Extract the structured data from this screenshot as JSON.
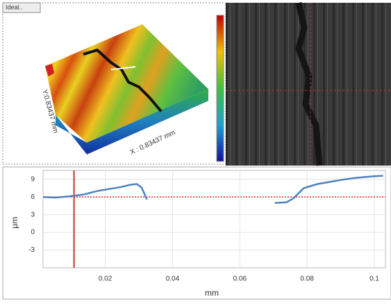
{
  "view3d": {
    "tab": "Ideal..",
    "x_label": "X : 0.83437 mm",
    "y_label": "Y:0.83437 mm"
  },
  "chart_data": {
    "type": "line",
    "x": [
      0.0015,
      0.0052,
      0.0093,
      0.0134,
      0.0175,
      0.0216,
      0.0247,
      0.0277,
      0.0294,
      0.0308,
      0.0324,
      0.05,
      0.0704,
      0.0739,
      0.076,
      0.079,
      0.0831,
      0.0872,
      0.0913,
      0.0954,
      0.0995,
      0.1026
    ],
    "values": [
      6.0,
      5.9,
      6.1,
      6.4,
      7.0,
      7.4,
      7.7,
      8.1,
      8.2,
      7.6,
      5.6,
      null,
      5.0,
      5.1,
      5.8,
      7.5,
      8.2,
      8.6,
      9.0,
      9.3,
      9.5,
      9.6
    ],
    "color": "#4f81bd",
    "xlim": [
      0.0015,
      0.1033
    ],
    "ylim": [
      -6,
      10.5
    ],
    "xticks": [
      0.02,
      0.04,
      0.06,
      0.08,
      0.1
    ],
    "yticks": [
      9,
      6,
      3,
      0,
      -3
    ],
    "x_label": "mm",
    "y_label": "μm",
    "reference_y": 6,
    "reference_color": "#e03030",
    "cursor_x": 0.0107,
    "cursor_color": "#c83232",
    "grid": true
  }
}
